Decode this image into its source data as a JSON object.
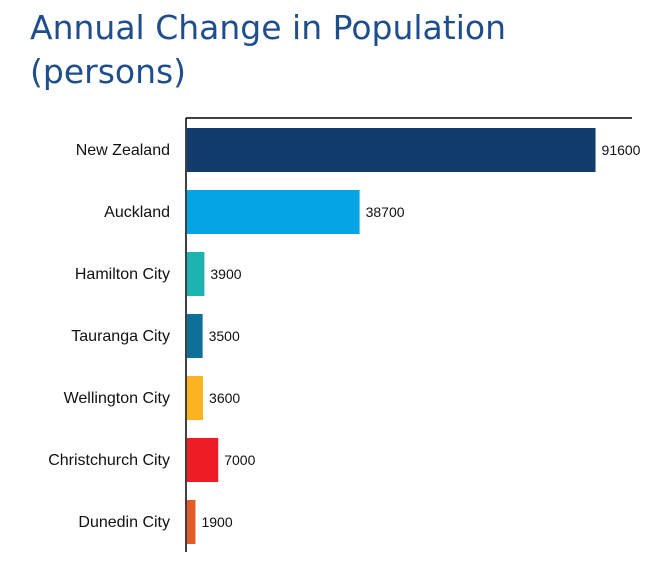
{
  "chart_data": {
    "type": "bar",
    "orientation": "horizontal",
    "title": [
      "Annual Change in Population",
      "(persons)"
    ],
    "categories": [
      "New Zealand",
      "Auckland",
      "Hamilton City",
      "Tauranga City",
      "Wellington City",
      "Christchurch City",
      "Dunedin City"
    ],
    "values": [
      91600,
      38700,
      3900,
      3500,
      3600,
      7000,
      1900
    ],
    "value_labels": [
      "91600",
      "38700",
      "3900",
      "3500",
      "3600",
      "7000",
      "1900"
    ],
    "colors": [
      "#123c6b",
      "#03a6e2",
      "#1db3b0",
      "#0e6f98",
      "#fbb41f",
      "#ee1c25",
      "#e45b2a"
    ],
    "xlim": [
      0,
      100000
    ],
    "grid": false,
    "legend": "none"
  }
}
